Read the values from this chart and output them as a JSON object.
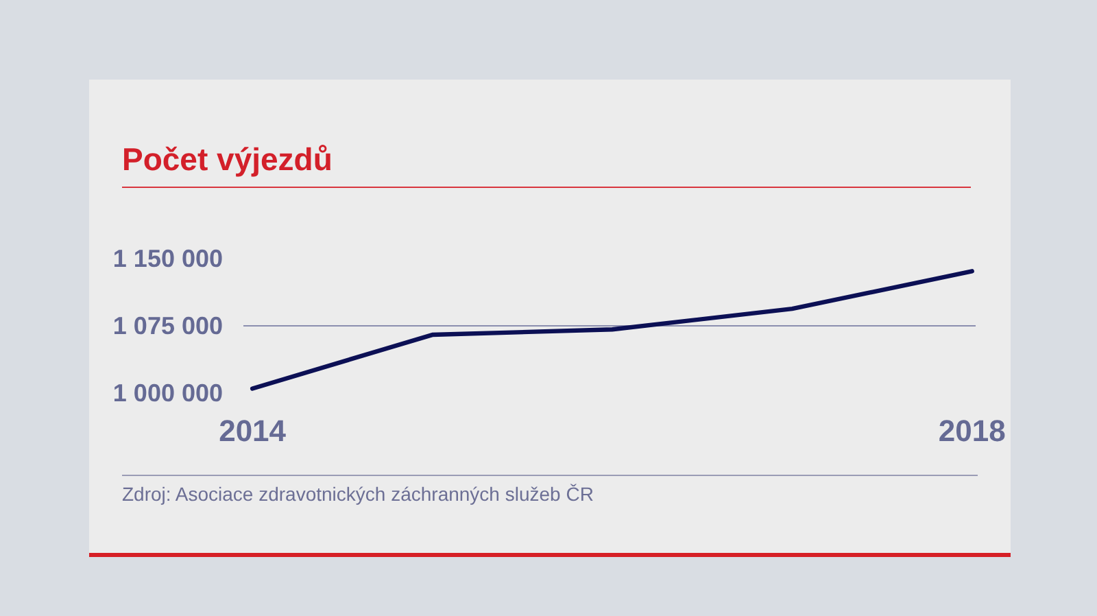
{
  "chart_data": {
    "type": "line",
    "title": "Počet výjezdů",
    "x": [
      2014,
      2015,
      2016,
      2017,
      2018
    ],
    "xlim": [
      2013.95,
      2018.02
    ],
    "xticks": [
      2014,
      2018
    ],
    "ylim": [
      1000000,
      1150000
    ],
    "yticks": [
      {
        "value": 1000000,
        "label": "1 000 000"
      },
      {
        "value": 1075000,
        "label": "1 075 000"
      },
      {
        "value": 1150000,
        "label": "1 150 000"
      }
    ],
    "series": [
      {
        "color": "#0c1055",
        "values": [
          1005000,
          1065000,
          1071000,
          1094000,
          1136000
        ]
      }
    ],
    "grid": "y",
    "annotations": [
      "Zdroj: Asociace zdravotnických záchranných služeb ČR"
    ]
  }
}
